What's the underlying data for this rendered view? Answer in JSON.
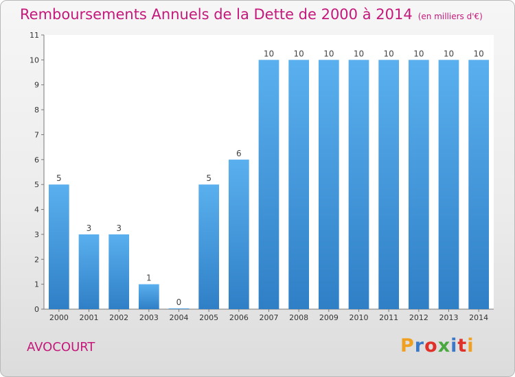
{
  "header": {
    "title": "Remboursements Annuels de la Dette de 2000 à 2014",
    "unit": "(en milliers d'€)"
  },
  "footer": {
    "place": "AVOCOURT",
    "logo": [
      "P",
      "r",
      "o",
      "x",
      "i",
      "t",
      "i"
    ],
    "logo_colors": [
      "#f0a020",
      "#3a78c8",
      "#e0302a",
      "#4aa840",
      "#3a78c8",
      "#e0302a",
      "#f0a020"
    ]
  },
  "colors": {
    "bar": "#3b8fd9",
    "bar_light": "#5ab0ee",
    "title": "#c4187a"
  },
  "chart_data": {
    "type": "bar",
    "title": "Remboursements Annuels de la Dette de 2000 à 2014",
    "xlabel": "",
    "ylabel": "",
    "categories": [
      "2000",
      "2001",
      "2002",
      "2003",
      "2004",
      "2005",
      "2006",
      "2007",
      "2008",
      "2009",
      "2010",
      "2011",
      "2012",
      "2013",
      "2014"
    ],
    "values": [
      5,
      3,
      3,
      1,
      0,
      5,
      6,
      10,
      10,
      10,
      10,
      10,
      10,
      10,
      10
    ],
    "data_labels": [
      "5",
      "3",
      "3",
      "1",
      "0",
      "5",
      "6",
      "10",
      "10",
      "10",
      "10",
      "10",
      "10",
      "10",
      "10"
    ],
    "ylim": [
      0,
      11
    ],
    "yticks": [
      0,
      1,
      2,
      3,
      4,
      5,
      6,
      7,
      8,
      9,
      10,
      11
    ],
    "grid": false,
    "legend": "none"
  }
}
